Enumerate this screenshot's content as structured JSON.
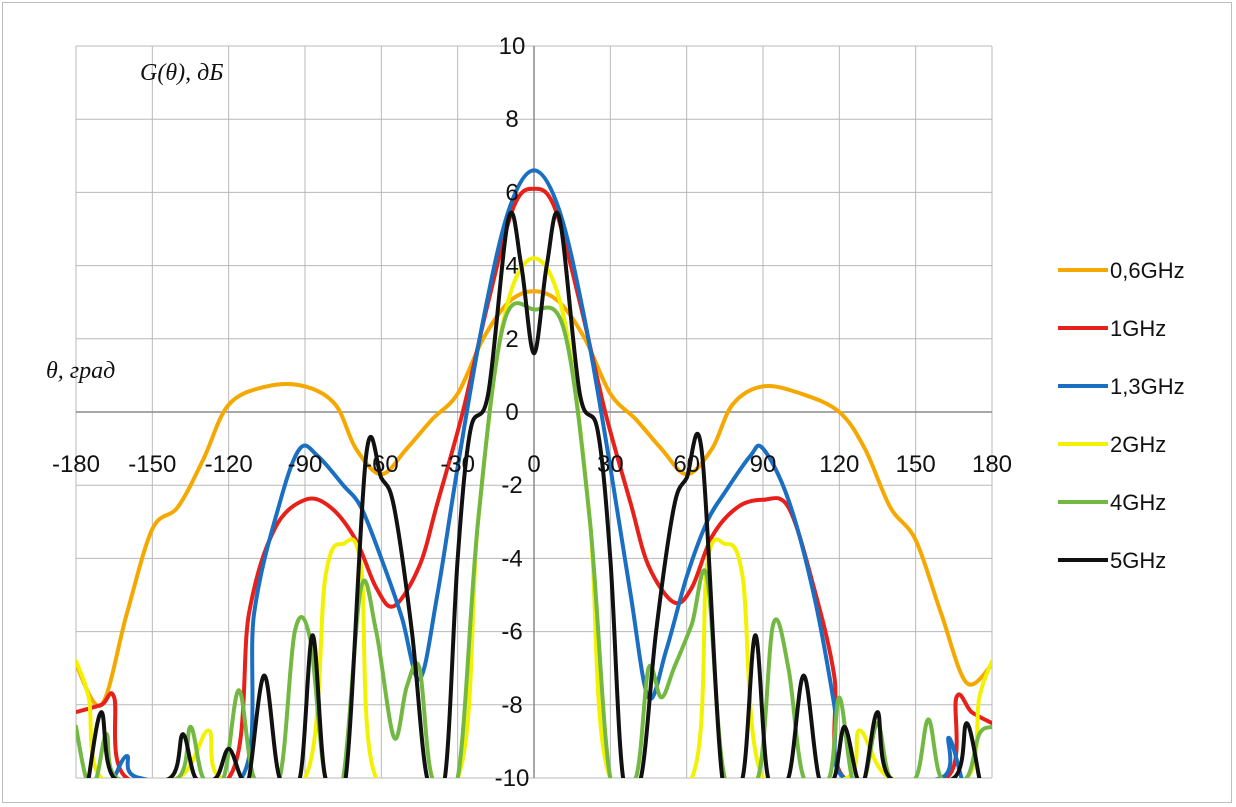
{
  "chart_data": {
    "type": "line",
    "ylabel": "G(θ), дБ",
    "xlabel": "θ, град",
    "xlim": [
      -180,
      180
    ],
    "ylim": [
      -10,
      10
    ],
    "x_ticks": [
      -180,
      -150,
      -120,
      -90,
      -60,
      -30,
      0,
      30,
      60,
      90,
      120,
      150,
      180
    ],
    "y_ticks": [
      -10,
      -8,
      -6,
      -4,
      -2,
      0,
      2,
      4,
      6,
      8,
      10
    ],
    "grid": true,
    "legend_position": "right",
    "series": [
      {
        "name": "0,6GHz",
        "color": "#f5a800",
        "points": [
          [
            -180,
            -6.9
          ],
          [
            -170,
            -8.0
          ],
          [
            -160,
            -5.5
          ],
          [
            -150,
            -3.2
          ],
          [
            -140,
            -2.6
          ],
          [
            -130,
            -1.3
          ],
          [
            -120,
            0.2
          ],
          [
            -105,
            0.7
          ],
          [
            -90,
            0.7
          ],
          [
            -78,
            0.2
          ],
          [
            -70,
            -1.0
          ],
          [
            -60,
            -1.7
          ],
          [
            -50,
            -1.0
          ],
          [
            -40,
            -0.2
          ],
          [
            -30,
            0.5
          ],
          [
            -20,
            2.0
          ],
          [
            -10,
            3.0
          ],
          [
            0,
            3.3
          ],
          [
            10,
            3.0
          ],
          [
            20,
            2.0
          ],
          [
            30,
            0.5
          ],
          [
            40,
            -0.2
          ],
          [
            50,
            -1.0
          ],
          [
            60,
            -1.7
          ],
          [
            70,
            -1.0
          ],
          [
            78,
            0.2
          ],
          [
            90,
            0.7
          ],
          [
            105,
            0.5
          ],
          [
            120,
            0.0
          ],
          [
            130,
            -1.0
          ],
          [
            140,
            -2.6
          ],
          [
            150,
            -3.5
          ],
          [
            160,
            -5.5
          ],
          [
            170,
            -7.4
          ],
          [
            180,
            -6.9
          ]
        ]
      },
      {
        "name": "1GHz",
        "color": "#e8201a",
        "points": [
          [
            -180,
            -8.2
          ],
          [
            -170,
            -8.0
          ],
          [
            -165,
            -7.8
          ],
          [
            -160,
            -10
          ],
          [
            -120,
            -10
          ],
          [
            -112,
            -5.5
          ],
          [
            -102,
            -3.2
          ],
          [
            -90,
            -2.4
          ],
          [
            -80,
            -2.6
          ],
          [
            -70,
            -3.5
          ],
          [
            -62,
            -4.8
          ],
          [
            -55,
            -5.3
          ],
          [
            -45,
            -4.2
          ],
          [
            -38,
            -2.5
          ],
          [
            -28,
            0.0
          ],
          [
            -18,
            3.0
          ],
          [
            -8,
            5.6
          ],
          [
            0,
            6.1
          ],
          [
            8,
            5.6
          ],
          [
            18,
            3.0
          ],
          [
            28,
            0.0
          ],
          [
            38,
            -2.5
          ],
          [
            45,
            -4.2
          ],
          [
            55,
            -5.2
          ],
          [
            62,
            -4.8
          ],
          [
            70,
            -3.4
          ],
          [
            80,
            -2.6
          ],
          [
            90,
            -2.4
          ],
          [
            100,
            -2.6
          ],
          [
            110,
            -4.8
          ],
          [
            118,
            -7.2
          ],
          [
            122,
            -10
          ],
          [
            162,
            -10
          ],
          [
            166,
            -7.8
          ],
          [
            172,
            -8.2
          ],
          [
            180,
            -8.5
          ]
        ]
      },
      {
        "name": "1,3GHz",
        "color": "#1a6fc2",
        "points": [
          [
            -165,
            -10
          ],
          [
            -160,
            -9.4
          ],
          [
            -155,
            -10
          ],
          [
            -115,
            -10
          ],
          [
            -110,
            -5.5
          ],
          [
            -100,
            -2.5
          ],
          [
            -92,
            -1.0
          ],
          [
            -85,
            -1.2
          ],
          [
            -75,
            -2.0
          ],
          [
            -68,
            -2.6
          ],
          [
            -60,
            -4.0
          ],
          [
            -52,
            -5.6
          ],
          [
            -45,
            -7.3
          ],
          [
            -38,
            -5.0
          ],
          [
            -30,
            -1.5
          ],
          [
            -20,
            2.5
          ],
          [
            -10,
            5.5
          ],
          [
            0,
            6.6
          ],
          [
            10,
            5.5
          ],
          [
            20,
            2.5
          ],
          [
            30,
            -1.5
          ],
          [
            38,
            -5.0
          ],
          [
            45,
            -7.8
          ],
          [
            52,
            -6.5
          ],
          [
            60,
            -4.5
          ],
          [
            68,
            -3.0
          ],
          [
            75,
            -2.2
          ],
          [
            85,
            -1.2
          ],
          [
            90,
            -1.0
          ],
          [
            100,
            -2.4
          ],
          [
            110,
            -5.0
          ],
          [
            118,
            -8.0
          ],
          [
            122,
            -10
          ],
          [
            160,
            -10
          ],
          [
            163,
            -8.9
          ],
          [
            168,
            -10
          ]
        ]
      },
      {
        "name": "2GHz",
        "color": "#f2f200",
        "points": [
          [
            -180,
            -6.8
          ],
          [
            -175,
            -7.8
          ],
          [
            -170,
            -10
          ],
          [
            -140,
            -10
          ],
          [
            -128,
            -8.7
          ],
          [
            -123,
            -10
          ],
          [
            -90,
            -10
          ],
          [
            -82,
            -4.5
          ],
          [
            -75,
            -3.6
          ],
          [
            -68,
            -4.2
          ],
          [
            -62,
            -10
          ],
          [
            -30,
            -10
          ],
          [
            -22,
            -3.0
          ],
          [
            -12,
            2.5
          ],
          [
            0,
            4.2
          ],
          [
            12,
            2.5
          ],
          [
            22,
            -3.0
          ],
          [
            30,
            -10
          ],
          [
            62,
            -10
          ],
          [
            68,
            -4.2
          ],
          [
            75,
            -3.6
          ],
          [
            82,
            -4.5
          ],
          [
            90,
            -10
          ],
          [
            123,
            -10
          ],
          [
            128,
            -8.7
          ],
          [
            140,
            -10
          ],
          [
            170,
            -10
          ],
          [
            175,
            -7.8
          ],
          [
            180,
            -6.8
          ]
        ]
      },
      {
        "name": "4GHz",
        "color": "#72b843",
        "points": [
          [
            -180,
            -8.6
          ],
          [
            -176,
            -10
          ],
          [
            -172,
            -10
          ],
          [
            -168,
            -8.8
          ],
          [
            -164,
            -10
          ],
          [
            -140,
            -10
          ],
          [
            -135,
            -8.6
          ],
          [
            -130,
            -10
          ],
          [
            -122,
            -10
          ],
          [
            -116,
            -7.6
          ],
          [
            -110,
            -10
          ],
          [
            -100,
            -10
          ],
          [
            -94,
            -6.0
          ],
          [
            -88,
            -6.2
          ],
          [
            -82,
            -10
          ],
          [
            -75,
            -10
          ],
          [
            -68,
            -4.8
          ],
          [
            -62,
            -6.0
          ],
          [
            -55,
            -8.9
          ],
          [
            -50,
            -7.5
          ],
          [
            -45,
            -7.0
          ],
          [
            -40,
            -10
          ],
          [
            -30,
            -10
          ],
          [
            -22,
            -3.0
          ],
          [
            -12,
            2.4
          ],
          [
            0,
            2.8
          ],
          [
            12,
            2.2
          ],
          [
            22,
            -3.0
          ],
          [
            30,
            -10
          ],
          [
            40,
            -10
          ],
          [
            45,
            -7.0
          ],
          [
            50,
            -7.8
          ],
          [
            55,
            -7.0
          ],
          [
            62,
            -5.8
          ],
          [
            68,
            -4.5
          ],
          [
            75,
            -10
          ],
          [
            88,
            -10
          ],
          [
            94,
            -5.8
          ],
          [
            100,
            -7.0
          ],
          [
            106,
            -10
          ],
          [
            116,
            -10
          ],
          [
            120,
            -7.8
          ],
          [
            125,
            -10
          ],
          [
            130,
            -10
          ],
          [
            135,
            -8.5
          ],
          [
            140,
            -10
          ],
          [
            150,
            -10
          ],
          [
            155,
            -8.4
          ],
          [
            160,
            -10
          ],
          [
            170,
            -10
          ],
          [
            175,
            -8.8
          ],
          [
            180,
            -8.6
          ]
        ]
      },
      {
        "name": "5GHz",
        "color": "#111111",
        "points": [
          [
            -175,
            -10
          ],
          [
            -170,
            -8.2
          ],
          [
            -165,
            -10
          ],
          [
            -143,
            -10
          ],
          [
            -138,
            -8.8
          ],
          [
            -133,
            -10
          ],
          [
            -125,
            -10
          ],
          [
            -120,
            -9.2
          ],
          [
            -115,
            -10
          ],
          [
            -112,
            -10
          ],
          [
            -106,
            -7.2
          ],
          [
            -100,
            -10
          ],
          [
            -92,
            -10
          ],
          [
            -87,
            -6.1
          ],
          [
            -82,
            -10
          ],
          [
            -74,
            -10
          ],
          [
            -66,
            -1.2
          ],
          [
            -60,
            -1.8
          ],
          [
            -55,
            -2.6
          ],
          [
            -48,
            -6.0
          ],
          [
            -42,
            -10
          ],
          [
            -35,
            -10
          ],
          [
            -30,
            -4.0
          ],
          [
            -25,
            -0.5
          ],
          [
            -18,
            0.5
          ],
          [
            -10,
            5.3
          ],
          [
            -5,
            4.0
          ],
          [
            0,
            1.6
          ],
          [
            5,
            4.0
          ],
          [
            10,
            5.3
          ],
          [
            18,
            0.5
          ],
          [
            25,
            -0.5
          ],
          [
            30,
            -4.0
          ],
          [
            35,
            -10
          ],
          [
            42,
            -10
          ],
          [
            48,
            -6.0
          ],
          [
            55,
            -2.6
          ],
          [
            60,
            -1.8
          ],
          [
            66,
            -1.1
          ],
          [
            74,
            -10
          ],
          [
            82,
            -10
          ],
          [
            87,
            -6.1
          ],
          [
            92,
            -10
          ],
          [
            100,
            -10
          ],
          [
            106,
            -7.2
          ],
          [
            112,
            -10
          ],
          [
            118,
            -10
          ],
          [
            122,
            -8.6
          ],
          [
            127,
            -10
          ],
          [
            130,
            -10
          ],
          [
            135,
            -8.2
          ],
          [
            140,
            -10
          ],
          [
            165,
            -10
          ],
          [
            170,
            -8.5
          ],
          [
            175,
            -10
          ]
        ]
      }
    ]
  }
}
